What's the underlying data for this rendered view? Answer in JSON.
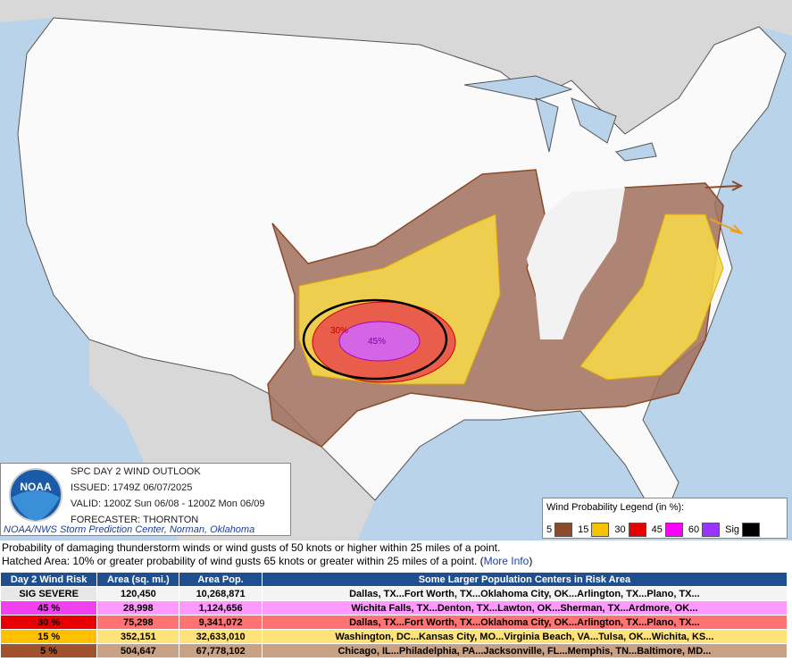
{
  "map": {
    "labels": [
      "30%",
      "45%"
    ]
  },
  "info_box": {
    "logo": "NOAA",
    "title": "SPC DAY 2 WIND OUTLOOK",
    "issued": "ISSUED: 1749Z 06/07/2025",
    "valid": "VALID: 1200Z Sun 06/08 - 1200Z Mon 06/09",
    "forecaster": "FORECASTER: THORNTON",
    "credit": "NOAA/NWS Storm Prediction Center, Norman, Oklahoma"
  },
  "legend": {
    "title": "Wind Probability Legend (in %):",
    "items": [
      {
        "label": "5",
        "color": "#8b4a2b"
      },
      {
        "label": "15",
        "color": "#f5c400"
      },
      {
        "label": "30",
        "color": "#e60000"
      },
      {
        "label": "45",
        "color": "#ff00ff"
      },
      {
        "label": "60",
        "color": "#9933ff"
      },
      {
        "label": "Sig",
        "color": "#000000"
      }
    ]
  },
  "description": {
    "line1": "Probability of damaging thunderstorm winds or wind gusts of 50 knots or higher within 25 miles of a point.",
    "line2": "Hatched Area: 10% or greater probability of wind gusts 65 knots or greater within 25 miles of a point. (",
    "link": "More Info",
    "close": ")"
  },
  "table": {
    "header": [
      "Day 2 Wind Risk",
      "Area (sq. mi.)",
      "Area Pop.",
      "Some Larger Population Centers in Risk Area"
    ],
    "rows": [
      {
        "cells": [
          "SIG SEVERE",
          "120,450",
          "10,268,871",
          "Dallas, TX...Fort Worth, TX...Oklahoma City, OK...Arlington, TX...Plano, TX..."
        ],
        "risk_color": "#e8e8e8",
        "row_color": "#f4f4f4"
      },
      {
        "cells": [
          "45 %",
          "28,998",
          "1,124,656",
          "Wichita Falls, TX...Denton, TX...Lawton, OK...Sherman, TX...Ardmore, OK..."
        ],
        "risk_color": "#f040f0",
        "row_color": "#ff99ff"
      },
      {
        "cells": [
          "30 %",
          "75,298",
          "9,341,072",
          "Dallas, TX...Fort Worth, TX...Oklahoma City, OK...Arlington, TX...Plano, TX..."
        ],
        "risk_color": "#e80000",
        "row_color": "#ff7373"
      },
      {
        "cells": [
          "15 %",
          "352,151",
          "32,633,010",
          "Washington, DC...Kansas City, MO...Virginia Beach, VA...Tulsa, OK...Wichita, KS..."
        ],
        "risk_color": "#ffc000",
        "row_color": "#ffe27a"
      },
      {
        "cells": [
          "5 %",
          "504,647",
          "67,778,102",
          "Chicago, IL...Philadelphia, PA...Jacksonville, FL...Memphis, TN...Baltimore, MD..."
        ],
        "risk_color": "#a0522d",
        "row_color": "#c9a184"
      }
    ]
  }
}
